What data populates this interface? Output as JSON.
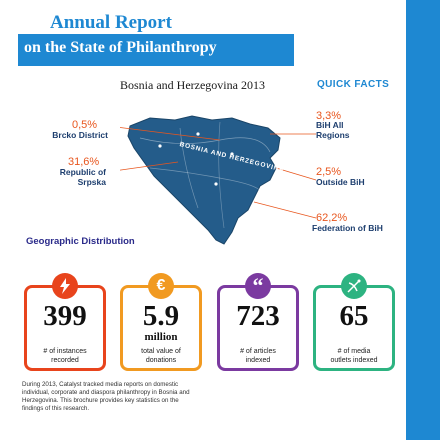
{
  "header": {
    "title": "Annual Report",
    "banner": "on the State of Philanthropy",
    "subtitle": "Bosnia and Herzegovina 2013",
    "quick_facts": "QUICK FACTS"
  },
  "map": {
    "country_label": "BOSNIA AND HERZEGOVINA",
    "section_label": "Geographic Distribution"
  },
  "stats": [
    {
      "value": "0,5%",
      "label": "Brcko District"
    },
    {
      "value": "31,6%",
      "label": "Republic of Srpska"
    },
    {
      "value": "3,3%",
      "label": "BiH All Regions"
    },
    {
      "value": "2,5%",
      "label": "Outside BiH"
    },
    {
      "value": "62,2%",
      "label": "Federation of BiH"
    }
  ],
  "cards": [
    {
      "number": "399",
      "sub": "",
      "label": "# of instances recorded",
      "color": "#e8441c",
      "icon": "lightning-icon"
    },
    {
      "number": "5.9",
      "sub": "million",
      "label": "total value of donations",
      "color": "#f19a21",
      "icon": "euro-icon"
    },
    {
      "number": "723",
      "sub": "",
      "label": "# of articles indexed",
      "color": "#7b3aa0",
      "icon": "quote-icon"
    },
    {
      "number": "65",
      "sub": "",
      "label": "# of media outlets indexed",
      "color": "#2db381",
      "icon": "satellite-dish-icon"
    }
  ],
  "footer": "During 2013, Catalyst tracked media reports on domestic individual, corporate and diaspora philanthropy in Bosnia and Herzegovina. This brochure provides key statistics on the findings of this research."
}
